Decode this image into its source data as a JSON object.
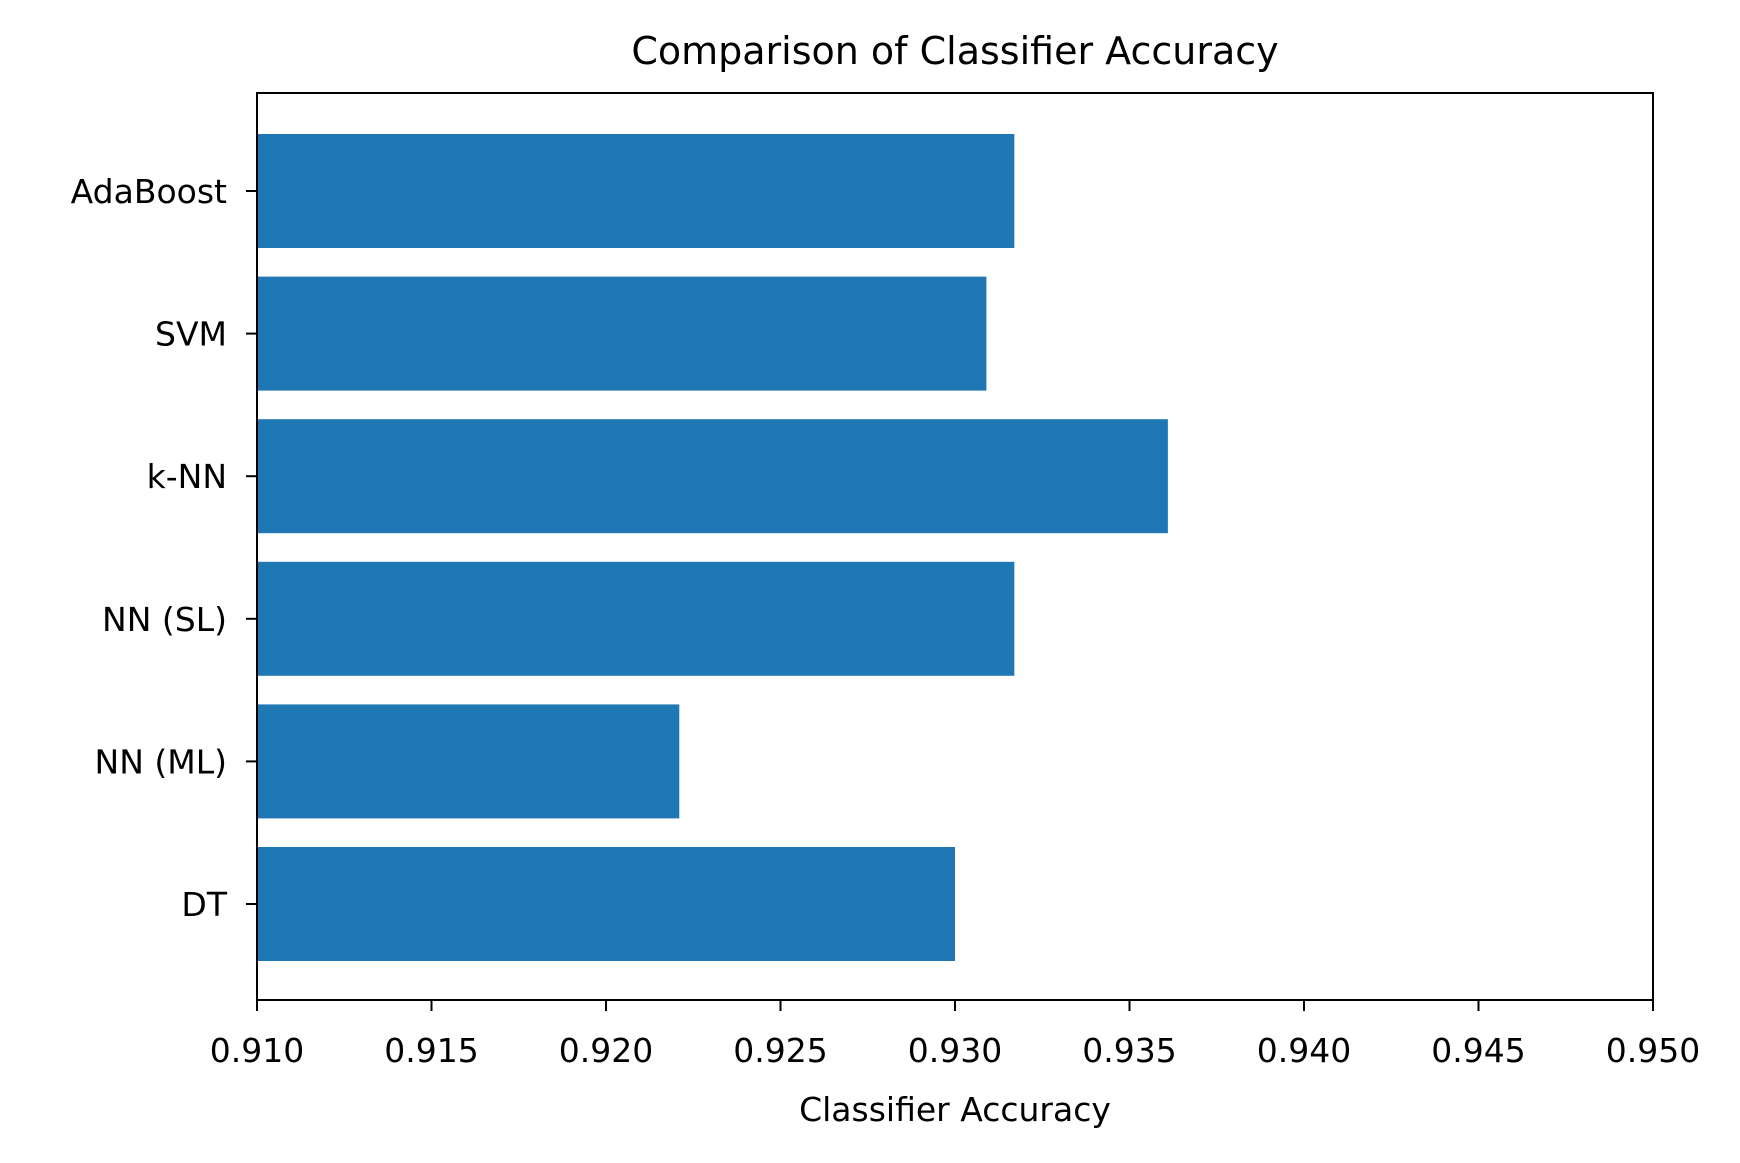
{
  "chart_data": {
    "type": "bar",
    "orientation": "horizontal",
    "title": "Comparison of Classifier Accuracy",
    "xlabel": "Classifier Accuracy",
    "ylabel": "",
    "categories": [
      "DT",
      "NN (ML)",
      "NN (SL)",
      "k-NN",
      "SVM",
      "AdaBoost"
    ],
    "values": [
      0.93,
      0.9221,
      0.9317,
      0.9361,
      0.9309,
      0.9317
    ],
    "xlim": [
      0.91,
      0.95
    ],
    "x_ticks": [
      "0.910",
      "0.915",
      "0.920",
      "0.925",
      "0.930",
      "0.935",
      "0.940",
      "0.945",
      "0.950"
    ],
    "grid": false,
    "legend": "none",
    "bar_color": "#1f77b4"
  }
}
